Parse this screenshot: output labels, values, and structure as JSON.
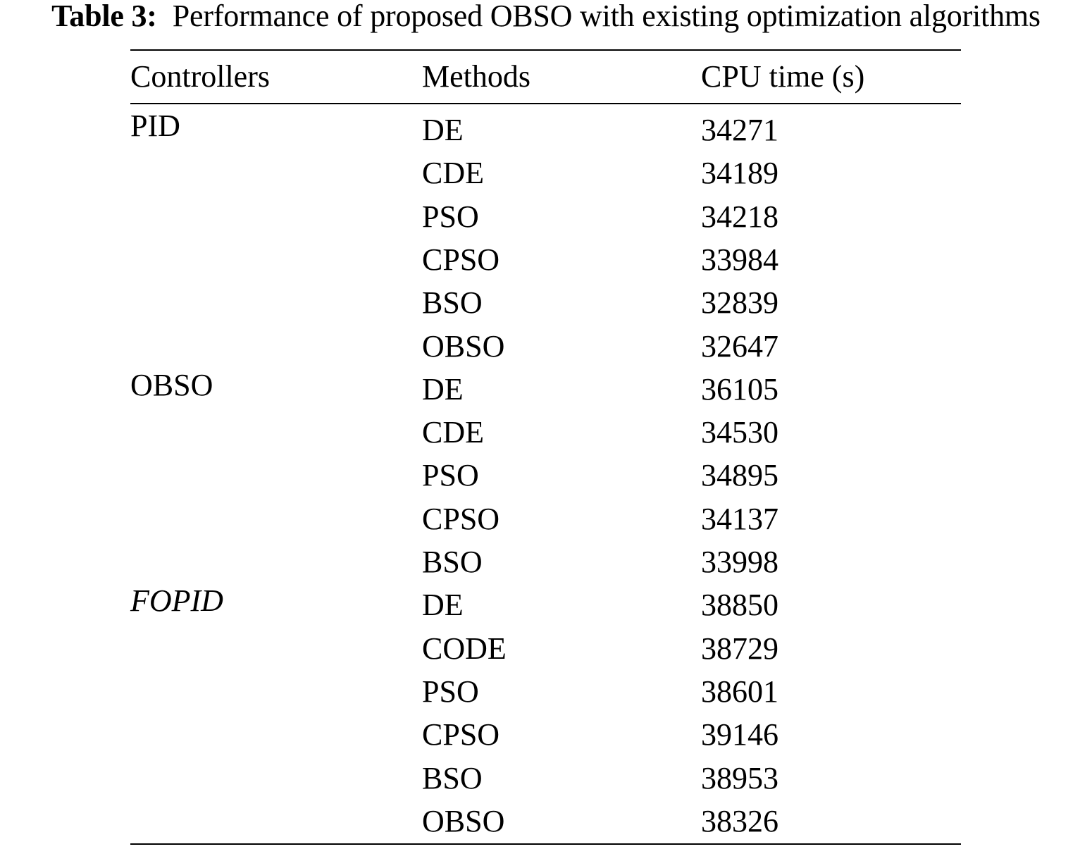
{
  "caption": {
    "label": "Table 3:",
    "text": "Performance of proposed OBSO with existing optimization algorithms"
  },
  "table": {
    "headers": {
      "controllers": "Controllers",
      "methods": "Methods",
      "cpu_time": "CPU time (s)"
    },
    "groups": [
      {
        "controller": "PID",
        "italic": false,
        "rows": [
          {
            "method": "DE",
            "cpu_time": "34271"
          },
          {
            "method": "CDE",
            "cpu_time": "34189"
          },
          {
            "method": "PSO",
            "cpu_time": "34218"
          },
          {
            "method": "CPSO",
            "cpu_time": "33984"
          },
          {
            "method": "BSO",
            "cpu_time": "32839"
          },
          {
            "method": "OBSO",
            "cpu_time": "32647"
          }
        ]
      },
      {
        "controller": "OBSO",
        "italic": false,
        "rows": [
          {
            "method": "DE",
            "cpu_time": "36105"
          },
          {
            "method": "CDE",
            "cpu_time": "34530"
          },
          {
            "method": "PSO",
            "cpu_time": "34895"
          },
          {
            "method": "CPSO",
            "cpu_time": "34137"
          },
          {
            "method": "BSO",
            "cpu_time": "33998"
          }
        ]
      },
      {
        "controller": "FOPID",
        "italic": true,
        "rows": [
          {
            "method": "DE",
            "cpu_time": "38850"
          },
          {
            "method": "CODE",
            "cpu_time": "38729"
          },
          {
            "method": "PSO",
            "cpu_time": "38601"
          },
          {
            "method": "CPSO",
            "cpu_time": "39146"
          },
          {
            "method": "BSO",
            "cpu_time": "38953"
          },
          {
            "method": "OBSO",
            "cpu_time": "38326"
          }
        ]
      }
    ]
  }
}
